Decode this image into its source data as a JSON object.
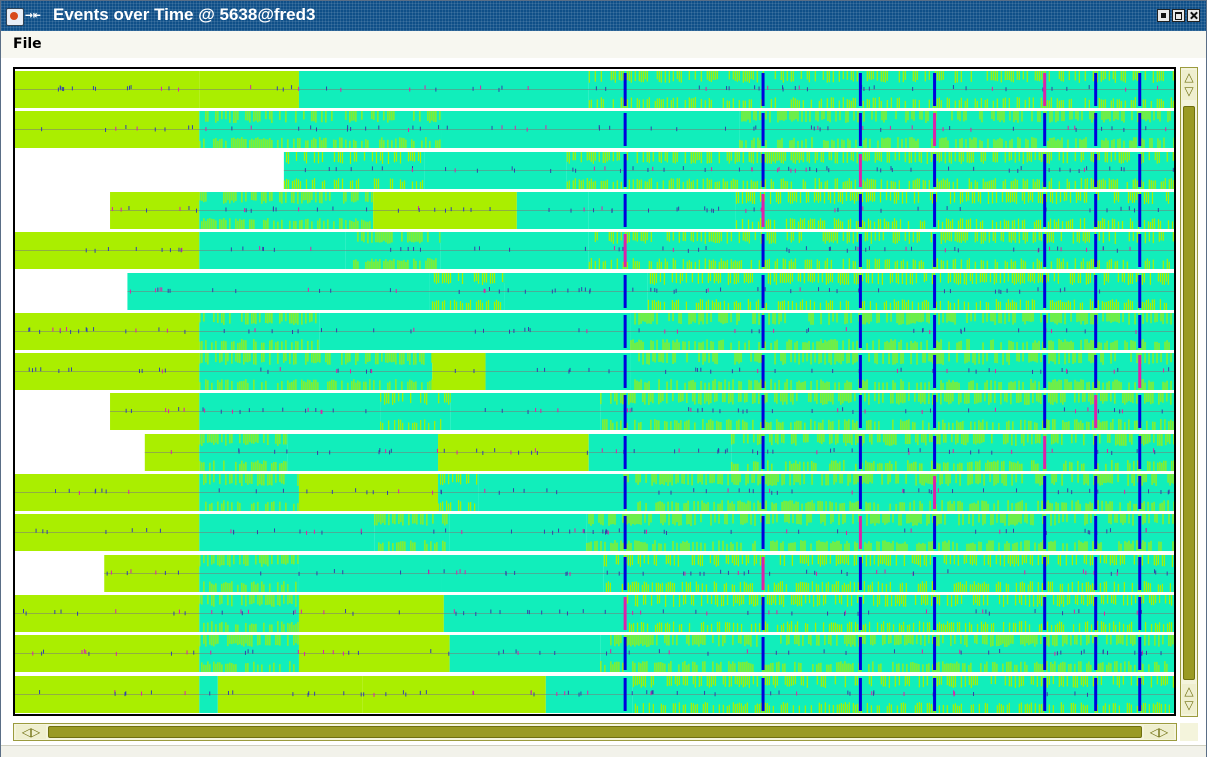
{
  "window": {
    "title": "Events over Time @ 5638@fred3"
  },
  "menu": {
    "file_label": "File"
  },
  "icons": {
    "app": "java-app-icon",
    "pin": "pin-icon",
    "minimize": "minimize-icon",
    "maximize": "maximize-icon",
    "close": "close-icon",
    "scroll_up": "arrow-up-icon",
    "scroll_down": "arrow-down-icon",
    "scroll_left": "arrow-left-icon",
    "scroll_right": "arrow-right-icon"
  },
  "colors": {
    "title_bar": "#0f4f88",
    "state_a": "#aaee00",
    "state_b": "#11eebb",
    "event_marker": "#0000dd",
    "event_marker_alt": "#dd22aa",
    "scroll_track": "#9a9a24"
  },
  "timeline": {
    "tracks": [
      {
        "start": 0.0,
        "segments": [
          [
            0.0,
            0.159,
            "a"
          ],
          [
            0.159,
            0.245,
            "a"
          ],
          [
            0.245,
            0.495,
            "b"
          ],
          [
            0.495,
            1.0,
            "mix"
          ]
        ]
      },
      {
        "start": 0.0,
        "segments": [
          [
            0.0,
            0.159,
            "a"
          ],
          [
            0.159,
            0.368,
            "mix"
          ],
          [
            0.368,
            0.625,
            "b"
          ],
          [
            0.625,
            1.0,
            "mix"
          ]
        ]
      },
      {
        "start": 0.232,
        "segments": [
          [
            0.232,
            0.353,
            "mix"
          ],
          [
            0.353,
            0.476,
            "b"
          ],
          [
            0.476,
            1.0,
            "mix"
          ]
        ]
      },
      {
        "start": 0.082,
        "segments": [
          [
            0.082,
            0.159,
            "a"
          ],
          [
            0.159,
            0.309,
            "mix"
          ],
          [
            0.309,
            0.433,
            "a"
          ],
          [
            0.433,
            0.495,
            "b"
          ],
          [
            0.495,
            0.622,
            "b"
          ],
          [
            0.622,
            1.0,
            "mix"
          ]
        ]
      },
      {
        "start": 0.0,
        "segments": [
          [
            0.0,
            0.159,
            "a"
          ],
          [
            0.159,
            0.285,
            "b"
          ],
          [
            0.285,
            0.367,
            "mix"
          ],
          [
            0.367,
            0.495,
            "b"
          ],
          [
            0.495,
            1.0,
            "mix"
          ]
        ]
      },
      {
        "start": 0.097,
        "segments": [
          [
            0.097,
            0.358,
            "b"
          ],
          [
            0.358,
            0.422,
            "mix"
          ],
          [
            0.422,
            0.546,
            "b"
          ],
          [
            0.546,
            1.0,
            "mix"
          ]
        ]
      },
      {
        "start": 0.0,
        "segments": [
          [
            0.0,
            0.159,
            "a"
          ],
          [
            0.159,
            0.263,
            "mix"
          ],
          [
            0.263,
            0.531,
            "b"
          ],
          [
            0.531,
            1.0,
            "mix"
          ]
        ]
      },
      {
        "start": 0.0,
        "segments": [
          [
            0.0,
            0.159,
            "a"
          ],
          [
            0.159,
            0.36,
            "mix"
          ],
          [
            0.36,
            0.406,
            "a"
          ],
          [
            0.406,
            0.531,
            "b"
          ],
          [
            0.531,
            1.0,
            "mix"
          ]
        ]
      },
      {
        "start": 0.082,
        "segments": [
          [
            0.082,
            0.159,
            "a"
          ],
          [
            0.159,
            0.315,
            "b"
          ],
          [
            0.315,
            0.376,
            "mix"
          ],
          [
            0.376,
            0.505,
            "b"
          ],
          [
            0.505,
            1.0,
            "mix"
          ]
        ]
      },
      {
        "start": 0.112,
        "segments": [
          [
            0.112,
            0.159,
            "a"
          ],
          [
            0.159,
            0.235,
            "mix"
          ],
          [
            0.235,
            0.365,
            "b"
          ],
          [
            0.365,
            0.495,
            "a"
          ],
          [
            0.495,
            0.618,
            "b"
          ],
          [
            0.618,
            1.0,
            "mix"
          ]
        ]
      },
      {
        "start": 0.0,
        "segments": [
          [
            0.0,
            0.159,
            "a"
          ],
          [
            0.159,
            0.245,
            "mix"
          ],
          [
            0.245,
            0.365,
            "a"
          ],
          [
            0.365,
            0.4,
            "mix"
          ],
          [
            0.4,
            0.525,
            "b"
          ],
          [
            0.525,
            1.0,
            "mix"
          ]
        ]
      },
      {
        "start": 0.0,
        "segments": [
          [
            0.0,
            0.159,
            "a"
          ],
          [
            0.159,
            0.31,
            "b"
          ],
          [
            0.31,
            0.375,
            "mix"
          ],
          [
            0.375,
            0.493,
            "b"
          ],
          [
            0.493,
            1.0,
            "mix"
          ]
        ]
      },
      {
        "start": 0.077,
        "segments": [
          [
            0.077,
            0.159,
            "a"
          ],
          [
            0.159,
            0.245,
            "mix"
          ],
          [
            0.245,
            0.368,
            "b"
          ],
          [
            0.368,
            0.508,
            "b"
          ],
          [
            0.508,
            1.0,
            "mix"
          ]
        ]
      },
      {
        "start": 0.0,
        "segments": [
          [
            0.0,
            0.159,
            "a"
          ],
          [
            0.159,
            0.245,
            "mix"
          ],
          [
            0.245,
            0.37,
            "a"
          ],
          [
            0.37,
            0.528,
            "b"
          ],
          [
            0.528,
            1.0,
            "mix"
          ]
        ]
      },
      {
        "start": 0.0,
        "segments": [
          [
            0.0,
            0.159,
            "a"
          ],
          [
            0.159,
            0.245,
            "mix"
          ],
          [
            0.245,
            0.375,
            "a"
          ],
          [
            0.375,
            0.505,
            "b"
          ],
          [
            0.505,
            1.0,
            "mix"
          ]
        ]
      },
      {
        "start": 0.0,
        "segments": [
          [
            0.0,
            0.159,
            "a"
          ],
          [
            0.159,
            0.175,
            "b"
          ],
          [
            0.175,
            0.3,
            "a"
          ],
          [
            0.3,
            0.458,
            "a"
          ],
          [
            0.458,
            0.533,
            "b"
          ],
          [
            0.533,
            1.0,
            "mix"
          ]
        ]
      }
    ],
    "markers": [
      0.526,
      0.645,
      0.729,
      0.793,
      0.888,
      0.932,
      0.97
    ]
  },
  "scroll": {
    "vertical_thumb": {
      "start": 0.06,
      "end": 0.94
    },
    "horizontal_thumb": {
      "start": 0.03,
      "end": 0.97
    }
  }
}
